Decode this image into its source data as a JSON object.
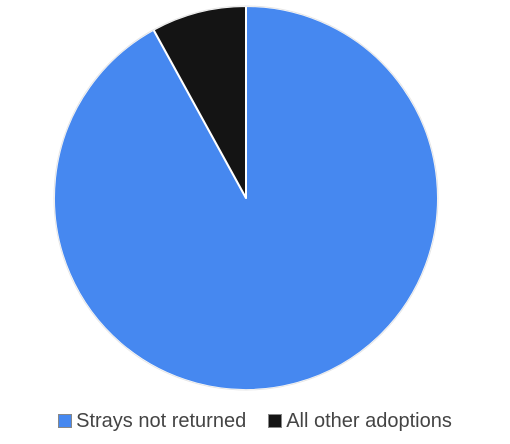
{
  "chart_data": {
    "type": "pie",
    "title": "",
    "series": [
      {
        "name": "",
        "slices": [
          {
            "label": "Strays not returned",
            "value": 92,
            "color": "#4688f0"
          },
          {
            "label": "All other adoptions",
            "value": 8,
            "color": "#141414"
          }
        ]
      }
    ],
    "legend_position": "bottom",
    "slice_border_color": "#ffffff",
    "start_angle": "12 o'clock",
    "direction": "clockwise"
  },
  "legend": {
    "items": [
      {
        "label": "Strays not returned",
        "color": "#4688f0"
      },
      {
        "label": "All other adoptions",
        "color": "#141414"
      }
    ]
  }
}
